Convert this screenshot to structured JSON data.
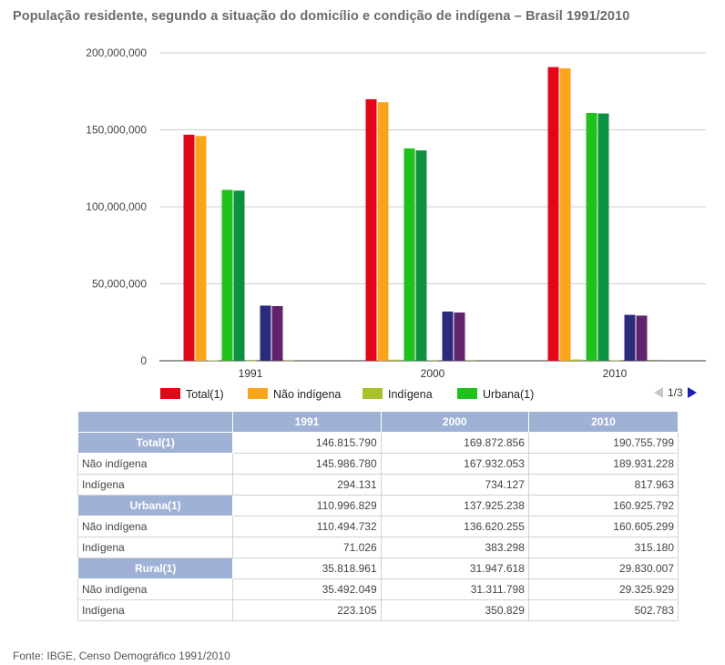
{
  "title": "População residente, segundo a situação do domicílio e condição de indígena – Brasil 1991/2010",
  "chart_data": {
    "type": "bar",
    "categories": [
      "1991",
      "2000",
      "2010"
    ],
    "ylim": [
      0,
      200000000
    ],
    "yticks": [
      0,
      50000000,
      100000000,
      150000000,
      200000000
    ],
    "ytick_labels": [
      "0",
      "50,000,000",
      "100,000,000",
      "150,000,000",
      "200,000,000"
    ],
    "series": [
      {
        "name": "Total(1)",
        "color": "#e3061b",
        "values": [
          146815790,
          169872856,
          190755799
        ]
      },
      {
        "name": "Não indígena",
        "color": "#f8a51c",
        "values": [
          145986780,
          167932053,
          189931228
        ]
      },
      {
        "name": "Indígena",
        "color": "#a8c22a",
        "values": [
          294131,
          734127,
          817963
        ]
      },
      {
        "name": "Urbana(1)",
        "color": "#1fc21b",
        "values": [
          110996829,
          137925238,
          160925792
        ]
      },
      {
        "name": "Não indígena (Urbana)",
        "color": "#0d9141",
        "values": [
          110494732,
          136620255,
          160605299
        ]
      },
      {
        "name": "Indígena (Urbana)",
        "color": "#99bb22",
        "values": [
          71026,
          383298,
          315180
        ]
      },
      {
        "name": "Rural(1)",
        "color": "#2b2a7c",
        "values": [
          35818961,
          31947618,
          29830007
        ]
      },
      {
        "name": "Não indígena (Rural)",
        "color": "#61236b",
        "values": [
          35492049,
          31311798,
          29325929
        ]
      },
      {
        "name": "Indígena (Rural)",
        "color": "#7a8c2a",
        "values": [
          223105,
          350829,
          502783
        ]
      }
    ],
    "legend_visible": [
      "Total(1)",
      "Não indígena",
      "Indígena",
      "Urbana(1)"
    ]
  },
  "pager": {
    "label": "1/3"
  },
  "table": {
    "columns": [
      "1991",
      "2000",
      "2010"
    ],
    "groups": [
      {
        "name": "Total(1)",
        "values": [
          "146.815.790",
          "169.872.856",
          "190.755.799"
        ],
        "rows": [
          {
            "label": "Não indígena",
            "values": [
              "145.986.780",
              "167.932.053",
              "189.931.228"
            ]
          },
          {
            "label": "Indígena",
            "values": [
              "294.131",
              "734.127",
              "817.963"
            ]
          }
        ]
      },
      {
        "name": "Urbana(1)",
        "values": [
          "110.996.829",
          "137.925.238",
          "160.925.792"
        ],
        "rows": [
          {
            "label": "Não indígena",
            "values": [
              "110.494.732",
              "136.620.255",
              "160.605.299"
            ]
          },
          {
            "label": "Indígena",
            "values": [
              "71.026",
              "383.298",
              "315.180"
            ]
          }
        ]
      },
      {
        "name": "Rural(1)",
        "values": [
          "35.818.961",
          "31.947.618",
          "29.830.007"
        ],
        "rows": [
          {
            "label": "Não indígena",
            "values": [
              "35.492.049",
              "31.311.798",
              "29.325.929"
            ]
          },
          {
            "label": "Indígena",
            "values": [
              "223.105",
              "350.829",
              "502.783"
            ]
          }
        ]
      }
    ]
  },
  "source": "Fonte: IBGE, Censo Demográfico 1991/2010"
}
